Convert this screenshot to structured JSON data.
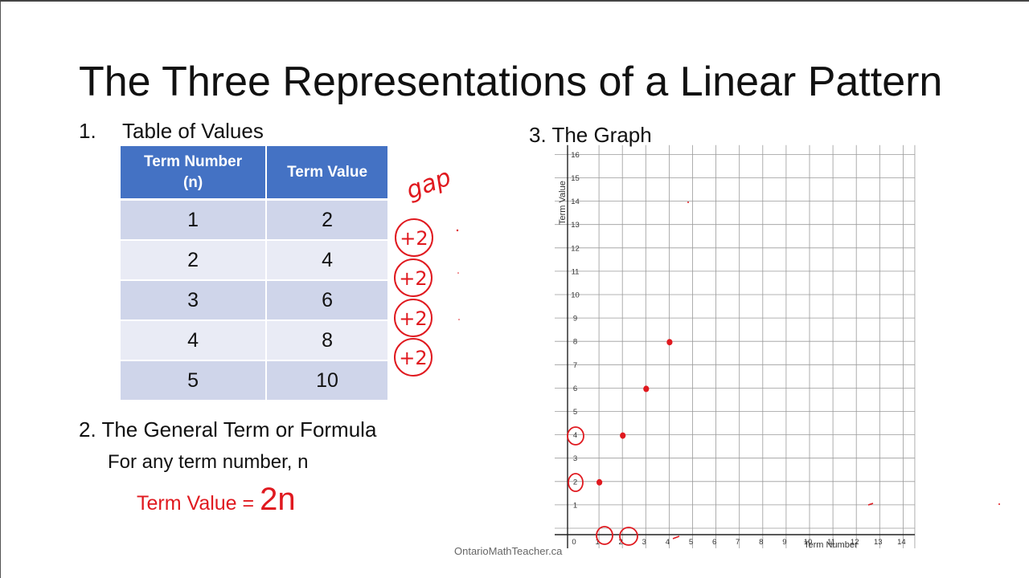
{
  "title": "The Three Representations of a Linear Pattern",
  "section1": {
    "number": "1.",
    "title": "Table of Values",
    "headers": [
      "Term Number (n)",
      "Term Value"
    ],
    "rows": [
      [
        "1",
        "2"
      ],
      [
        "2",
        "4"
      ],
      [
        "3",
        "6"
      ],
      [
        "4",
        "8"
      ],
      [
        "5",
        "10"
      ]
    ]
  },
  "section2": {
    "title": "2. The General Term or Formula",
    "subtitle": "For any term number, n",
    "formula_label": "Term Value = ",
    "formula_value": "2n"
  },
  "section3": {
    "title": "3. The Graph"
  },
  "annotations": {
    "gap_label": "gap",
    "differences": [
      "+2",
      "+2",
      "+2",
      "+2"
    ]
  },
  "watermark": "OntarioMathTeacher.ca",
  "colors": {
    "header_blue": "#4472c4",
    "row_dark": "#cfd5ea",
    "row_light": "#e9ebf5",
    "ink_red": "#e0191f"
  },
  "chart_data": {
    "type": "scatter",
    "xlabel": "Term Number",
    "ylabel": "Term Value",
    "xlim": [
      -1,
      14
    ],
    "ylim": [
      0,
      16
    ],
    "x_ticks": [
      "1",
      "0",
      "1",
      "2",
      "3",
      "4",
      "5",
      "6",
      "7",
      "8",
      "9",
      "10",
      "11",
      "12",
      "13",
      "14"
    ],
    "y_ticks": [
      "1",
      "2",
      "3",
      "4",
      "5",
      "6",
      "7",
      "8",
      "9",
      "10",
      "11",
      "12",
      "13",
      "14",
      "15",
      "16"
    ],
    "grid": true,
    "points": [
      {
        "x": 1,
        "y": 2
      },
      {
        "x": 2,
        "y": 4
      },
      {
        "x": 3,
        "y": 6
      },
      {
        "x": 4,
        "y": 8
      }
    ]
  }
}
